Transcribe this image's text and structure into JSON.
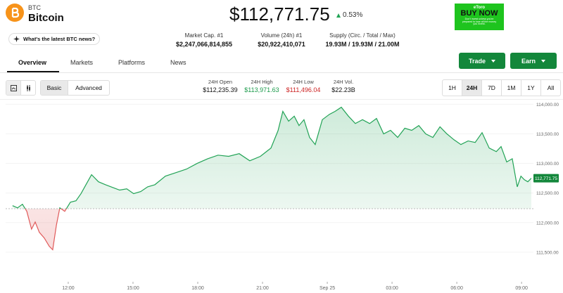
{
  "header": {
    "symbol": "BTC",
    "name": "Bitcoin",
    "news_button": "What's the latest BTC news?",
    "price": "$112,771.75",
    "change": "0.53%",
    "ad": {
      "brand": "eToro",
      "cta": "BUY NOW",
      "disclaimer": "Don't invest unless you're prepared to lose all the money you invest."
    }
  },
  "stats": [
    {
      "label": "Market Cap. #1",
      "value": "$2,247,066,814,855"
    },
    {
      "label": "Volume (24h) #1",
      "value": "$20,922,410,071"
    },
    {
      "label": "Supply (Circ. / Total / Max)",
      "value": "19.93M / 19.93M / 21.00M"
    }
  ],
  "tabs": [
    "Overview",
    "Markets",
    "Platforms",
    "News"
  ],
  "actions": [
    "Trade",
    "Earn"
  ],
  "view_modes": [
    "Basic",
    "Advanced"
  ],
  "day_stats": [
    {
      "label": "24H Open",
      "value": "$112,235.39"
    },
    {
      "label": "24H High",
      "value": "$113,971.63"
    },
    {
      "label": "24H Low",
      "value": "$111,496.04"
    },
    {
      "label": "24H Vol.",
      "value": "$22.23B"
    }
  ],
  "timeframes": [
    "1H",
    "24H",
    "7D",
    "1M",
    "1Y",
    "All"
  ],
  "chart_data": {
    "type": "line",
    "x": [
      9.42,
      9.65,
      9.88,
      10.08,
      10.3,
      10.47,
      10.66,
      10.89,
      11.12,
      11.28,
      11.45,
      11.61,
      11.84,
      12.1,
      12.36,
      12.59,
      12.82,
      13.08,
      13.4,
      13.73,
      14.05,
      14.38,
      14.71,
      15.03,
      15.36,
      15.68,
      16.01,
      16.5,
      16.99,
      17.48,
      17.97,
      18.46,
      18.94,
      19.43,
      19.92,
      20.41,
      20.9,
      21.39,
      21.72,
      21.94,
      22.21,
      22.47,
      22.69,
      22.92,
      23.18,
      23.44,
      23.77,
      24.1,
      24.36,
      24.65,
      24.98,
      25.3,
      25.63,
      25.96,
      26.28,
      26.61,
      26.93,
      27.26,
      27.59,
      27.91,
      28.24,
      28.56,
      28.89,
      29.22,
      29.54,
      29.87,
      30.19,
      30.52,
      30.85,
      31.17,
      31.5,
      31.83,
      32.05,
      32.31,
      32.57,
      32.8,
      32.97,
      33.13,
      33.29,
      33.45
    ],
    "values": [
      112286,
      112250,
      112310,
      112190,
      111890,
      112010,
      111835,
      111740,
      111600,
      111540,
      111955,
      112250,
      112190,
      112345,
      112370,
      112490,
      112640,
      112810,
      112690,
      112640,
      112595,
      112550,
      112570,
      112490,
      112525,
      112605,
      112640,
      112785,
      112845,
      112905,
      113000,
      113080,
      113140,
      113120,
      113165,
      113045,
      113120,
      113260,
      113555,
      113880,
      113715,
      113800,
      113640,
      113740,
      113440,
      113320,
      113740,
      113830,
      113880,
      113950,
      113800,
      113675,
      113740,
      113675,
      113760,
      113500,
      113560,
      113440,
      113595,
      113560,
      113640,
      113500,
      113440,
      113620,
      113500,
      113400,
      113320,
      113380,
      113355,
      113520,
      113260,
      113200,
      113285,
      113025,
      113080,
      112605,
      112785,
      112725,
      112690,
      112750
    ],
    "baseline": 112235.39,
    "up_color": "#22a356",
    "down_color": "#e05a5a",
    "last_price_label": "112,771.75",
    "xlim": [
      9.1,
      33.55
    ],
    "xticks": [
      {
        "value": 12,
        "label": "12:00"
      },
      {
        "value": 15,
        "label": "15:00"
      },
      {
        "value": 18,
        "label": "18:00"
      },
      {
        "value": 21,
        "label": "21:00"
      },
      {
        "value": 24,
        "label": "Sep 25"
      },
      {
        "value": 27,
        "label": "03:00"
      },
      {
        "value": 30,
        "label": "06:00"
      },
      {
        "value": 33,
        "label": "09:00"
      }
    ],
    "ylim": [
      111000,
      114100
    ],
    "yticks": [
      {
        "value": 111500,
        "label": "111,500.00"
      },
      {
        "value": 112000,
        "label": "112,000.00"
      },
      {
        "value": 112500,
        "label": "112,500.00"
      },
      {
        "value": 113000,
        "label": "113,000.00"
      },
      {
        "value": 113500,
        "label": "113,500.00"
      },
      {
        "value": 114000,
        "label": "114,000.00"
      }
    ],
    "grid": true
  }
}
